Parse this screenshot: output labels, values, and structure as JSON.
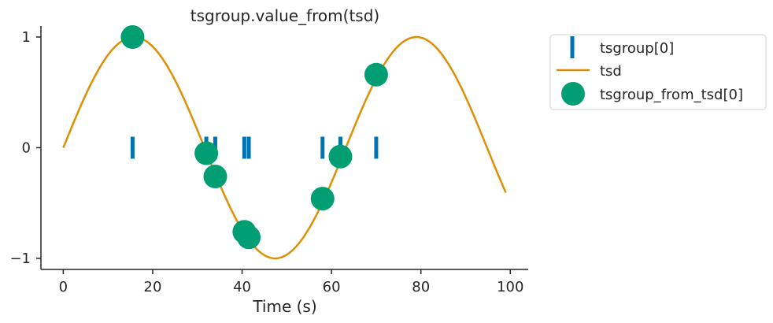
{
  "chart_data": {
    "type": "line",
    "title": "tsgroup.value_from(tsd)",
    "xlabel": "Time (s)",
    "ylabel": "",
    "xlim": [
      -5,
      104
    ],
    "ylim": [
      -1.1,
      1.1
    ],
    "x_ticks": [
      0,
      20,
      40,
      60,
      80,
      100
    ],
    "y_ticks": [
      -1,
      0,
      1
    ],
    "x_tick_labels": [
      "0",
      "20",
      "40",
      "60",
      "80",
      "100"
    ],
    "y_tick_labels": [
      "−1",
      "0",
      "1"
    ],
    "grid": false,
    "legend_position": "outside-top-right",
    "series": [
      {
        "name": "tsgroup[0]",
        "type": "eventplot",
        "color": "#0173b2",
        "y": 0,
        "x": [
          15.5,
          32.0,
          34.0,
          40.5,
          41.5,
          58.0,
          62.0,
          70.0
        ]
      },
      {
        "name": "tsd",
        "type": "line",
        "color": "#de8f05",
        "function": "sin(2*pi*t/63.2)",
        "x_start": 0,
        "x_end": 99
      },
      {
        "name": "tsgroup_from_tsd[0]",
        "type": "scatter",
        "color": "#029e73",
        "points": [
          {
            "x": 15.5,
            "y": 1.0
          },
          {
            "x": 32.0,
            "y": -0.05
          },
          {
            "x": 34.0,
            "y": -0.26
          },
          {
            "x": 40.5,
            "y": -0.76
          },
          {
            "x": 41.5,
            "y": -0.81
          },
          {
            "x": 58.0,
            "y": -0.46
          },
          {
            "x": 62.0,
            "y": -0.08
          },
          {
            "x": 70.0,
            "y": 0.66
          }
        ]
      }
    ]
  }
}
